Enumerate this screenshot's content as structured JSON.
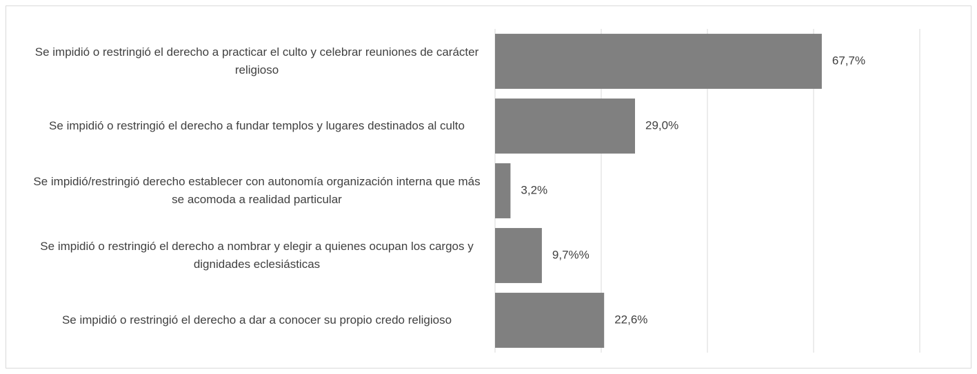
{
  "chart_data": {
    "type": "hbar",
    "categories": [
      "Se impidió o restringió el derecho a practicar el culto y celebrar reuniones de carácter religioso",
      "Se impidió o restringió el derecho a fundar templos y lugares destinados al culto",
      "Se impidió/restringió derecho establecer con autonomía organización interna que más se acomoda a realidad particular",
      "Se impidió o restringió el derecho a nombrar y elegir a quienes ocupan los cargos y dignidades eclesiásticas",
      "Se impidió o restringió el derecho a dar a conocer su propio credo religioso"
    ],
    "values": [
      67.7,
      29.0,
      3.2,
      9.7,
      22.6
    ],
    "value_labels": [
      "67,7%",
      "29,0%",
      "3,2%",
      "9,7%%",
      "22,6%"
    ],
    "color": "#808080",
    "xlim": [
      0,
      88
    ],
    "xticks": [
      0,
      22,
      44,
      66,
      88
    ],
    "grid": true
  }
}
